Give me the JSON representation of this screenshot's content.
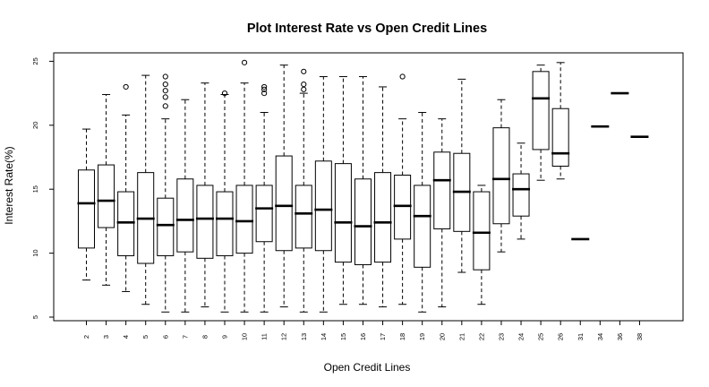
{
  "chart_data": {
    "type": "box",
    "title": "Plot Interest Rate vs Open Credit Lines",
    "xlabel": "Open Credit Lines",
    "ylabel": "Interest Rate(%)",
    "ylim": [
      5,
      25.5
    ],
    "yticks": [
      5,
      10,
      15,
      20,
      25
    ],
    "grid": false,
    "categories": [
      "2",
      "3",
      "4",
      "5",
      "6",
      "7",
      "8",
      "9",
      "10",
      "11",
      "12",
      "13",
      "14",
      "15",
      "16",
      "17",
      "18",
      "19",
      "20",
      "21",
      "22",
      "23",
      "24",
      "25",
      "26",
      "31",
      "34",
      "36",
      "38"
    ],
    "boxes": [
      {
        "whisker_low": 7.9,
        "q1": 10.4,
        "median": 13.9,
        "q3": 16.5,
        "whisker_high": 19.7,
        "outliers": []
      },
      {
        "whisker_low": 7.5,
        "q1": 12.0,
        "median": 14.1,
        "q3": 16.9,
        "whisker_high": 22.4,
        "outliers": []
      },
      {
        "whisker_low": 7.0,
        "q1": 9.8,
        "median": 12.4,
        "q3": 14.8,
        "whisker_high": 20.8,
        "outliers": [
          23.0
        ]
      },
      {
        "whisker_low": 6.0,
        "q1": 9.2,
        "median": 12.7,
        "q3": 16.3,
        "whisker_high": 23.9,
        "outliers": []
      },
      {
        "whisker_low": 5.4,
        "q1": 9.8,
        "median": 12.2,
        "q3": 14.3,
        "whisker_high": 20.5,
        "outliers": [
          21.5,
          22.2,
          22.7,
          23.2,
          23.8
        ]
      },
      {
        "whisker_low": 5.4,
        "q1": 10.1,
        "median": 12.6,
        "q3": 15.8,
        "whisker_high": 22.0,
        "outliers": []
      },
      {
        "whisker_low": 5.8,
        "q1": 9.6,
        "median": 12.7,
        "q3": 15.3,
        "whisker_high": 23.3,
        "outliers": []
      },
      {
        "whisker_low": 5.4,
        "q1": 9.8,
        "median": 12.7,
        "q3": 14.8,
        "whisker_high": 22.4,
        "outliers": [
          22.5
        ]
      },
      {
        "whisker_low": 5.4,
        "q1": 10.0,
        "median": 12.5,
        "q3": 15.3,
        "whisker_high": 23.3,
        "outliers": [
          24.9
        ]
      },
      {
        "whisker_low": 5.4,
        "q1": 10.9,
        "median": 13.5,
        "q3": 15.3,
        "whisker_high": 21.0,
        "outliers": [
          22.5,
          22.8,
          23.0
        ]
      },
      {
        "whisker_low": 5.8,
        "q1": 10.2,
        "median": 13.7,
        "q3": 17.6,
        "whisker_high": 24.7,
        "outliers": []
      },
      {
        "whisker_low": 5.4,
        "q1": 10.4,
        "median": 13.1,
        "q3": 15.3,
        "whisker_high": 22.5,
        "outliers": [
          22.8,
          23.2,
          24.2
        ]
      },
      {
        "whisker_low": 5.4,
        "q1": 10.2,
        "median": 13.4,
        "q3": 17.2,
        "whisker_high": 23.8,
        "outliers": []
      },
      {
        "whisker_low": 6.0,
        "q1": 9.3,
        "median": 12.4,
        "q3": 17.0,
        "whisker_high": 23.8,
        "outliers": []
      },
      {
        "whisker_low": 6.0,
        "q1": 9.1,
        "median": 12.1,
        "q3": 15.8,
        "whisker_high": 23.8,
        "outliers": []
      },
      {
        "whisker_low": 5.8,
        "q1": 9.3,
        "median": 12.4,
        "q3": 16.3,
        "whisker_high": 23.0,
        "outliers": []
      },
      {
        "whisker_low": 6.0,
        "q1": 11.1,
        "median": 13.7,
        "q3": 16.1,
        "whisker_high": 20.5,
        "outliers": [
          23.8
        ]
      },
      {
        "whisker_low": 5.4,
        "q1": 8.9,
        "median": 12.9,
        "q3": 15.3,
        "whisker_high": 21.0,
        "outliers": []
      },
      {
        "whisker_low": 5.8,
        "q1": 11.9,
        "median": 15.7,
        "q3": 17.9,
        "whisker_high": 20.5,
        "outliers": []
      },
      {
        "whisker_low": 8.5,
        "q1": 11.7,
        "median": 14.8,
        "q3": 17.8,
        "whisker_high": 23.6,
        "outliers": []
      },
      {
        "whisker_low": 6.0,
        "q1": 8.7,
        "median": 11.6,
        "q3": 14.8,
        "whisker_high": 15.3,
        "outliers": []
      },
      {
        "whisker_low": 10.1,
        "q1": 12.3,
        "median": 15.8,
        "q3": 19.8,
        "whisker_high": 22.0,
        "outliers": []
      },
      {
        "whisker_low": 11.1,
        "q1": 12.9,
        "median": 15.0,
        "q3": 16.2,
        "whisker_high": 18.6,
        "outliers": []
      },
      {
        "whisker_low": 15.7,
        "q1": 18.1,
        "median": 22.1,
        "q3": 24.2,
        "whisker_high": 24.7,
        "outliers": []
      },
      {
        "whisker_low": 15.8,
        "q1": 16.8,
        "median": 17.8,
        "q3": 21.3,
        "whisker_high": 24.9,
        "outliers": []
      },
      {
        "whisker_low": 11.1,
        "q1": 11.1,
        "median": 11.1,
        "q3": 11.1,
        "whisker_high": 11.1,
        "outliers": []
      },
      {
        "whisker_low": 19.9,
        "q1": 19.9,
        "median": 19.9,
        "q3": 19.9,
        "whisker_high": 19.9,
        "outliers": []
      },
      {
        "whisker_low": 22.5,
        "q1": 22.5,
        "median": 22.5,
        "q3": 22.5,
        "whisker_high": 22.5,
        "outliers": []
      },
      {
        "whisker_low": 19.1,
        "q1": 19.1,
        "median": 19.1,
        "q3": 19.1,
        "whisker_high": 19.1,
        "outliers": []
      }
    ]
  }
}
